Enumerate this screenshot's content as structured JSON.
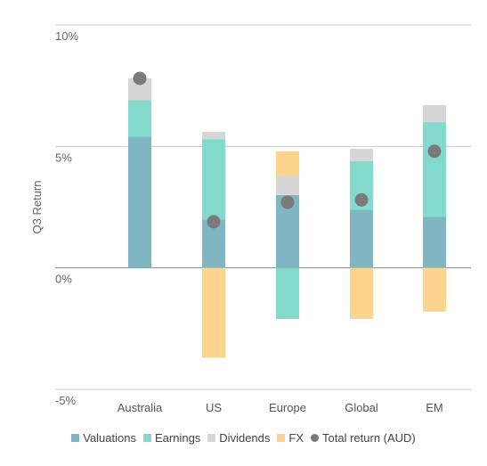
{
  "chart_data": {
    "type": "bar",
    "stacked": true,
    "ylabel": "Q3 Return",
    "xlabel": "",
    "ylim": [
      -5,
      10
    ],
    "yticks": [
      {
        "value": -5,
        "label": "-5%"
      },
      {
        "value": 0,
        "label": "0%"
      },
      {
        "value": 5,
        "label": "5%"
      },
      {
        "value": 10,
        "label": "10%"
      }
    ],
    "grid": "horizontal",
    "legend_position": "bottom",
    "categories": [
      "Australia",
      "US",
      "Europe",
      "Global",
      "EM"
    ],
    "series": [
      {
        "name": "Valuations",
        "color": "#7fb6c1",
        "values": [
          5.4,
          2.0,
          3.0,
          2.4,
          2.1
        ]
      },
      {
        "name": "Earnings",
        "color": "#83d9cc",
        "values": [
          1.5,
          3.3,
          -2.1,
          2.0,
          3.9
        ]
      },
      {
        "name": "Dividends",
        "color": "#d6d6d6",
        "values": [
          0.9,
          0.3,
          0.8,
          0.5,
          0.7
        ]
      },
      {
        "name": "FX",
        "color": "#fdd48d",
        "values": [
          0.0,
          -3.7,
          1.0,
          -2.1,
          -1.8
        ]
      }
    ],
    "total": {
      "name": "Total return (AUD)",
      "color": "#7a7a7a",
      "values": [
        7.8,
        1.9,
        2.7,
        2.8,
        4.8
      ]
    }
  }
}
